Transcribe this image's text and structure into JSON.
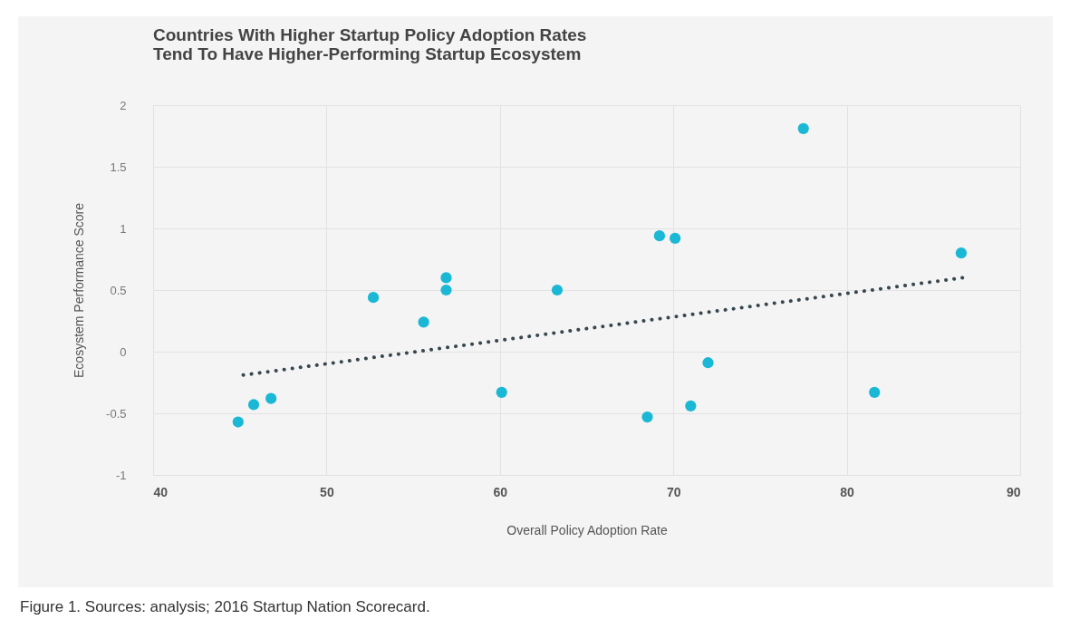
{
  "chart_data": {
    "type": "scatter",
    "title": "Countries With Higher Startup Policy Adoption Rates\nTend To Have Higher-Performing Startup Ecosystem",
    "xlabel": "Overall Policy Adoption Rate",
    "ylabel": "Ecosystem Performance Score",
    "grid": true,
    "xlim": [
      40,
      90
    ],
    "xticks": [
      40,
      50,
      60,
      70,
      80,
      90
    ],
    "ylim": [
      -1,
      2
    ],
    "yticks": [
      -1,
      -0.5,
      0,
      0.5,
      1,
      1.5,
      2
    ],
    "series": [
      {
        "marker": "circle",
        "color": "#1bb8d6",
        "x": [
          44.9,
          45.8,
          46.8,
          52.7,
          55.6,
          56.9,
          56.9,
          60.1,
          63.3,
          68.5,
          69.2,
          70.1,
          71.0,
          72.0,
          77.5,
          81.6,
          86.6
        ],
        "values": [
          -0.57,
          -0.43,
          -0.38,
          0.44,
          0.24,
          0.6,
          0.5,
          -0.33,
          0.5,
          -0.53,
          0.94,
          0.92,
          -0.44,
          -0.09,
          1.81,
          -0.33,
          0.8
        ]
      },
      {
        "type": "line",
        "marker": "none",
        "color": "#37474f",
        "line_style": "dotted",
        "x": [
          45.2,
          86.7
        ],
        "values": [
          -0.19,
          0.6
        ]
      }
    ],
    "annotations": [
      "Figure 1. Sources: analysis; 2016 Startup Nation Scorecard."
    ]
  }
}
